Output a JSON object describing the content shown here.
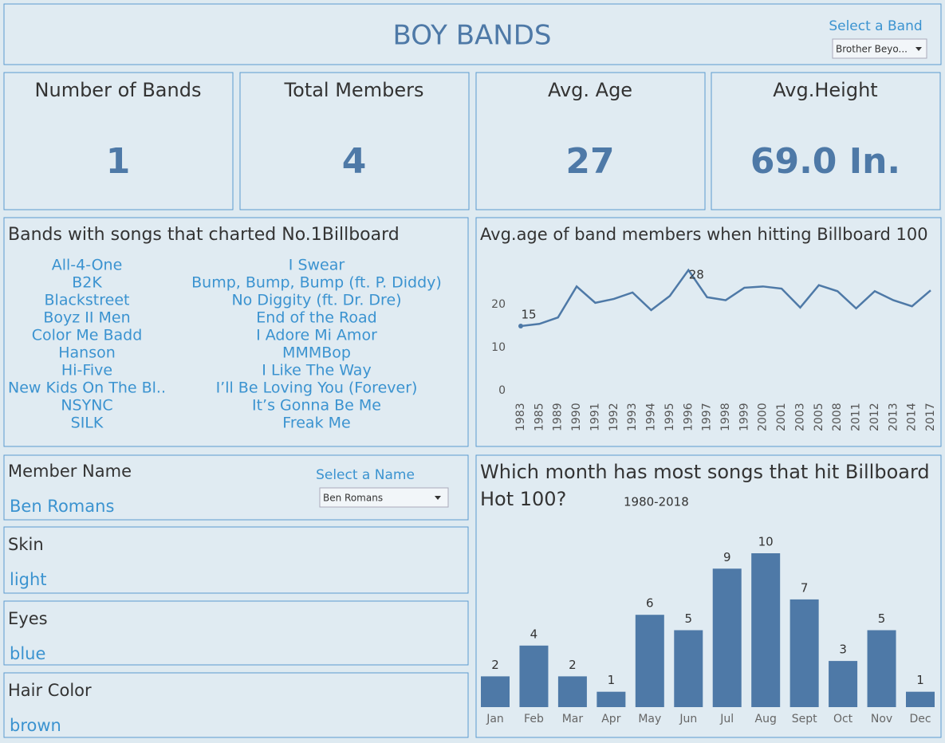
{
  "header": {
    "title": "BOY BANDS",
    "select_label": "Select a Band",
    "select_value": "Brother Beyo..."
  },
  "kpis": [
    {
      "label": "Number of Bands",
      "value": 1
    },
    {
      "label": "Total  Members",
      "value": 4
    },
    {
      "label": "Avg. Age",
      "value": 27
    },
    {
      "label": "Avg.Height",
      "value": "69.0 In."
    }
  ],
  "bands_list": {
    "title": "Bands with songs that charted No.1Billboard",
    "bands": [
      "All-4-One",
      "B2K",
      "Blackstreet",
      "Boyz II Men",
      "Color Me Badd",
      "Hanson",
      "Hi-Five",
      "New Kids On The Bl..",
      "NSYNC",
      "SILK"
    ],
    "songs": [
      "I Swear",
      "Bump, Bump, Bump (ft. P. Diddy)",
      "No Diggity (ft. Dr. Dre)",
      "End of the Road",
      "I Adore Mi Amor",
      "MMMBop",
      "I Like The Way",
      "I’ll Be Loving You (Forever)",
      "It’s Gonna Be Me",
      "Freak Me"
    ]
  },
  "member": {
    "name_label": "Member Name",
    "name": "Ben Romans",
    "select_label": "Select a Name",
    "select_value": "Ben Romans",
    "attributes": [
      {
        "label": "Skin",
        "value": "light"
      },
      {
        "label": "Eyes",
        "value": "blue"
      },
      {
        "label": "Hair Color",
        "value": "brown"
      }
    ]
  },
  "chart_data": [
    {
      "type": "line",
      "title": "Avg.age of band members when hitting Billboard 100",
      "color": "#4e79a7",
      "categories": [
        "1983",
        "1985",
        "1989",
        "1990",
        "1991",
        "1992",
        "1993",
        "1994",
        "1995",
        "1996",
        "1997",
        "1998",
        "1999",
        "2000",
        "2001",
        "2003",
        "2005",
        "2008",
        "2011",
        "2012",
        "2013",
        "2014",
        "2017"
      ],
      "values": [
        15,
        15.5,
        17,
        24.2,
        20.4,
        21.3,
        22.8,
        18.7,
        22,
        28,
        21.7,
        21,
        23.9,
        24.2,
        23.7,
        19.3,
        24.5,
        23.1,
        19.1,
        23.1,
        21,
        19.6,
        23.3
      ],
      "ylim": [
        0,
        30
      ],
      "yticks": [
        0,
        10,
        20
      ]
    },
    {
      "type": "bar",
      "title": "Which month has most songs that hit Billboard",
      "title_line2": "Hot 100?",
      "subtitle": "1980-2018",
      "color": "#4e79a7",
      "categories": [
        "Jan",
        "Feb",
        "Mar",
        "Apr",
        "May",
        "Jun",
        "Jul",
        "Aug",
        "Sept",
        "Oct",
        "Nov",
        "Dec"
      ],
      "values": [
        2,
        4,
        2,
        1,
        6,
        5,
        9,
        10,
        7,
        3,
        5,
        1
      ],
      "ylim": [
        0,
        10
      ]
    }
  ]
}
